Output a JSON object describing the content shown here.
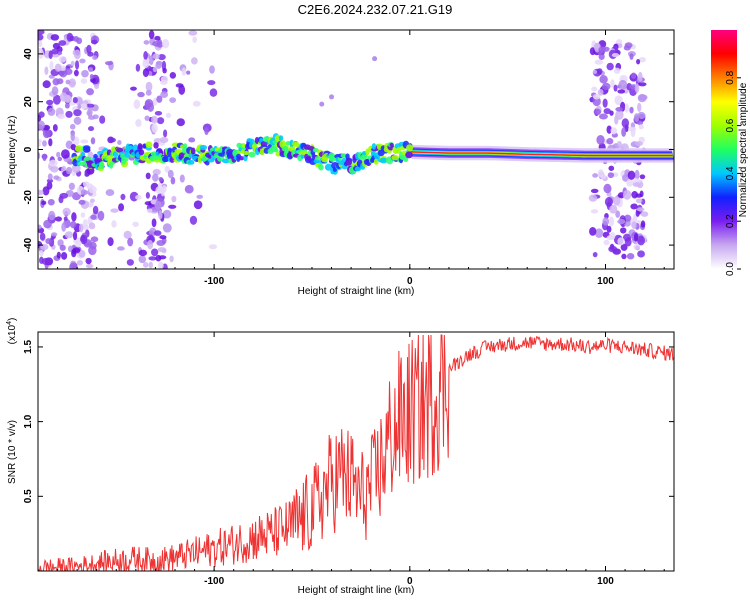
{
  "title": "C2E6.2024.232.07.21.G19",
  "chart_data": [
    {
      "type": "heatmap",
      "xlabel": "Height of straight line (km)",
      "ylabel": "Frequency (Hz)",
      "xlim": [
        -190,
        135
      ],
      "ylim": [
        -50,
        50
      ],
      "xticks": [
        -100,
        0,
        100
      ],
      "yticks": [
        -40,
        -20,
        0,
        20,
        40
      ],
      "colorbar": {
        "label": "Normalized spectral amplitude",
        "range": [
          0,
          1
        ],
        "ticks": [
          "0.0",
          "0.2",
          "0.4",
          "0.6",
          "0.8"
        ],
        "colors": [
          "#ffffff",
          "#c8a8f0",
          "#7a1ef0",
          "#1020ff",
          "#00c8ff",
          "#20ff60",
          "#a0ff00",
          "#ffff00",
          "#ff8000",
          "#ff0000",
          "#ff0080"
        ]
      },
      "ridge": {
        "x": [
          -165,
          -150,
          -130,
          -110,
          -100,
          -90,
          -80,
          -70,
          -60,
          -50,
          -40,
          -30,
          -20,
          -10,
          0,
          20,
          40,
          60,
          90
        ],
        "y": [
          -6,
          -3,
          -1,
          -2,
          -3,
          -1,
          1,
          2,
          0,
          -3,
          -6,
          -6,
          -2,
          -1,
          -1,
          -1.5,
          -1.5,
          -2,
          -2.5
        ]
      }
    },
    {
      "type": "line",
      "xlabel": "Height of straight line (km)",
      "ylabel": "SNR (10 * v/v)",
      "scale_label": "(x10",
      "scale_exp": "4",
      "scale_close": ")",
      "xlim": [
        -190,
        135
      ],
      "ylim": [
        0,
        1.6
      ],
      "xticks": [
        -100,
        0,
        100
      ],
      "yticks": [
        "0.5",
        "1.0",
        "1.5"
      ],
      "line_color": "#ee3333",
      "series": [
        {
          "x": [
            -190,
            -170,
            -160,
            -150,
            -140,
            -130,
            -120,
            -110,
            -100,
            -90,
            -80,
            -70,
            -60,
            -50,
            -45,
            -40,
            -35,
            -30,
            -25,
            -20,
            -15,
            -10,
            -5,
            0,
            5,
            10,
            15,
            20,
            25,
            30,
            40,
            50,
            60,
            70,
            80,
            90,
            100,
            110,
            120,
            135
          ],
          "values": [
            0.02,
            0.03,
            0.05,
            0.07,
            0.08,
            0.07,
            0.09,
            0.12,
            0.15,
            0.18,
            0.22,
            0.25,
            0.3,
            0.4,
            0.5,
            0.6,
            0.65,
            0.6,
            0.5,
            0.55,
            0.7,
            0.9,
            1.0,
            1.05,
            1.1,
            1.15,
            1.25,
            1.35,
            1.4,
            1.45,
            1.5,
            1.52,
            1.53,
            1.52,
            1.52,
            1.5,
            1.51,
            1.5,
            1.48,
            1.45
          ]
        }
      ]
    }
  ]
}
